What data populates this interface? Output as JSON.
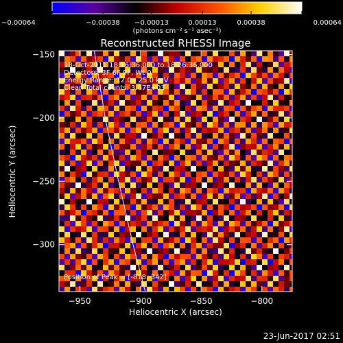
{
  "chart_data": {
    "type": "heatmap",
    "title": "Reconstructed RHESSI Image",
    "xlabel": "Heliocentric X (arcsec)",
    "ylabel": "Heliocentric Y (arcsec)",
    "xlim": [
      -967,
      -775
    ],
    "ylim": [
      -337,
      -147
    ],
    "x_ticks": [
      -950,
      -900,
      -850,
      -800
    ],
    "x_tick_labels": [
      "−950",
      "−900",
      "−850",
      "−800"
    ],
    "y_ticks": [
      -150,
      -200,
      -250,
      -300
    ],
    "y_tick_labels": [
      "−150",
      "−200",
      "−250",
      "−300"
    ],
    "colorbar": {
      "range": [
        -0.00064,
        0.00064
      ],
      "ticks": [
        -0.00064,
        -0.00038,
        -0.00013,
        0.00013,
        0.00038,
        0.00064
      ],
      "tick_labels": [
        "−0.00064",
        "−0.00038",
        "−0.00013",
        "0.00013",
        "0.00038",
        "0.00064"
      ],
      "units": "(photons cm⁻² s⁻¹ asec⁻²)",
      "colormap": [
        "#0000ff",
        "#5a00a0",
        "#000000",
        "#c00000",
        "#ff5000",
        "#ffd000",
        "#ffffff"
      ]
    },
    "annotations": [
      "18-Oct-2011 18:16:36.000 to 18:26:36.000",
      "Detectors: 3F 6F 9F, Wt 0",
      "Energy Range: 12.0 - 25.0 keV",
      "Clean    Total counts: 3.67E+03"
    ],
    "peak_label": "Position of Peak = [-818,-342]",
    "peak": [
      -818,
      -342
    ],
    "grid": false
  },
  "timestamp": "23-Jun-2017 02:51"
}
